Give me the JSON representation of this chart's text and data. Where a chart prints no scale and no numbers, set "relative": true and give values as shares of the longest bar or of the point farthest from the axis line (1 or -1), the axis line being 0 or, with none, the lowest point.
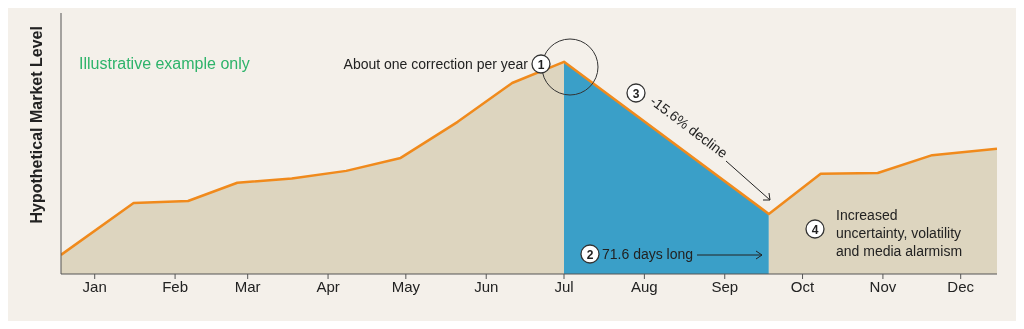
{
  "chart_data": {
    "type": "area",
    "relative": true,
    "ylabel": "Hypothetical Market Level",
    "xlim": [
      "--01-02",
      "--12-29"
    ],
    "xticks": [
      {
        "value": "--01-15",
        "label": "Jan"
      },
      {
        "value": "--02-15",
        "label": "Feb"
      },
      {
        "value": "--03-15",
        "label": "Mar"
      },
      {
        "value": "--04-15",
        "label": "Apr"
      },
      {
        "value": "--05-15",
        "label": "May"
      },
      {
        "value": "--06-15",
        "label": "Jun"
      },
      {
        "value": "--07-15",
        "label": "Jul"
      },
      {
        "value": "--08-15",
        "label": "Aug"
      },
      {
        "value": "--09-15",
        "label": "Sep"
      },
      {
        "value": "--10-15",
        "label": "Oct"
      },
      {
        "value": "--11-15",
        "label": "Nov"
      },
      {
        "value": "--12-15",
        "label": "Dec"
      }
    ],
    "series": [
      {
        "color": "#ddd5bf",
        "x": [
          "--01-02",
          "--01-30",
          "--02-20",
          "--03-11",
          "--04-01",
          "--04-22",
          "--05-13",
          "--06-04",
          "--06-25",
          "--07-15"
        ],
        "values": [
          0.09,
          0.335,
          0.344,
          0.43,
          0.45,
          0.486,
          0.547,
          0.717,
          0.9,
          1
        ]
      },
      {
        "color": "#3a9fc8",
        "x": [
          "--07-15",
          "--10-02"
        ],
        "values": [
          1,
          0.283
        ]
      },
      {
        "color": "#ddd5bf",
        "x": [
          "--10-02",
          "--10-22",
          "--11-13",
          "--12-04",
          "--12-29"
        ],
        "values": [
          0.283,
          0.472,
          0.476,
          0.56,
          0.59
        ]
      },
      {
        "type": "line",
        "color": "#f08a1c",
        "x": [
          "--01-02",
          "--01-30",
          "--02-20",
          "--03-11",
          "--04-01",
          "--04-22",
          "--05-13",
          "--06-04",
          "--06-25",
          "--07-15",
          "--10-02",
          "--10-22",
          "--11-13",
          "--12-04",
          "--12-29"
        ],
        "values": [
          0.09,
          0.335,
          0.344,
          0.43,
          0.45,
          0.486,
          0.547,
          0.717,
          0.9,
          1,
          0.283,
          0.472,
          0.476,
          0.56,
          0.59
        ]
      }
    ],
    "grid": false,
    "marker": "none",
    "line_style": "solid",
    "annotations": [
      "Illustrative example only",
      "1",
      "About one correction per year",
      "2",
      "71.6 days long",
      "3",
      "-15.6% decline",
      "4",
      "Increased uncertainty, volatility and media alarmism"
    ]
  }
}
